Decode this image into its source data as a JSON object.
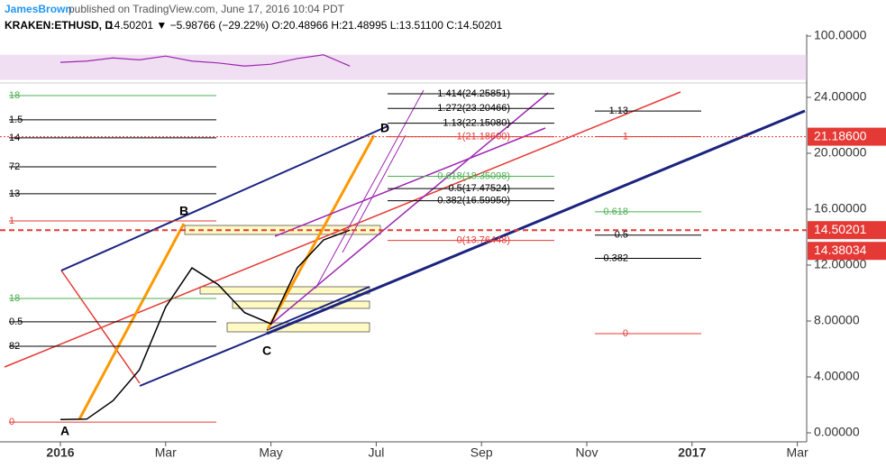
{
  "chart_data": {
    "type": "line",
    "author": "JamesBrown",
    "title": "published on TradingView.com, June 17, 2016 10:04 PDT",
    "symbol": "KRAKEN:ETHUSD, D",
    "quote": "14.50201 ▼ −5.98766 (−29.22%) O:20.48966 H:21.48995 L:13.51100 C:14.50201",
    "categories": [
      "2016",
      null,
      null,
      null,
      "Mar",
      null,
      null,
      null,
      "May",
      null,
      null,
      null,
      "Jul",
      null,
      null,
      null,
      "Sep",
      null,
      null,
      null,
      "Nov",
      null,
      null,
      null,
      "2017",
      null,
      null,
      null,
      "Mar",
      null
    ],
    "values": [
      0.95,
      0.98,
      2.3,
      4.5,
      9.0,
      11.8,
      10.6,
      8.6,
      7.8,
      11.8,
      13.8,
      14.50201,
      null,
      null,
      null,
      null,
      null,
      null,
      null,
      null,
      null,
      null,
      null,
      null,
      null,
      null,
      null,
      null,
      null,
      null
    ],
    "color": "#000000",
    "ylim": [
      -0.645,
      25.03
    ],
    "yticks": [
      {
        "value": 0,
        "label": "0.00000"
      },
      {
        "value": 4,
        "label": "4.00000"
      },
      {
        "value": 8,
        "label": "8.00000"
      },
      {
        "value": 12,
        "label": "12.00000"
      },
      {
        "value": 16,
        "label": "16.00000"
      },
      {
        "value": 20,
        "label": "20.00000"
      },
      {
        "value": 24,
        "label": "24.00000"
      }
    ],
    "rsi": {
      "values": [
        58,
        60,
        65,
        62,
        68,
        60,
        57,
        52,
        55,
        64,
        70,
        52
      ],
      "color": "#9c27b0",
      "ylim": [
        25,
        100
      ],
      "yticks": [
        {
          "value": 100,
          "label": "100.0000"
        }
      ],
      "band": [
        30,
        70
      ]
    },
    "price_tags": [
      {
        "value": 21.186,
        "label": "21.18600"
      },
      {
        "value": 14.50201,
        "label": "14.50201"
      },
      {
        "value": 14.38034,
        "label": "14.38034"
      }
    ],
    "points": [
      "A",
      "B",
      "C",
      "D"
    ],
    "fib_left": [
      {
        "label": "18",
        "value": 24.13,
        "color": "#4caf50"
      },
      {
        "label": "1.5",
        "value": 22.39,
        "color": "#000000"
      },
      {
        "label": "14",
        "value": 21.1,
        "color": "#000000"
      },
      {
        "label": "72",
        "value": 19.03,
        "color": "#000000"
      },
      {
        "label": "13",
        "value": 17.1,
        "color": "#000000"
      },
      {
        "label": "1",
        "value": 15.16,
        "color": "#e53935"
      },
      {
        "label": "18",
        "value": 9.61,
        "color": "#4caf50"
      },
      {
        "label": "0.5",
        "value": 7.94,
        "color": "#000000"
      },
      {
        "label": "82",
        "value": 6.19,
        "color": "#000000"
      },
      {
        "label": "0",
        "value": 0.77,
        "color": "#e53935"
      }
    ],
    "fib_mid": [
      {
        "label": "1.414(24.25851)",
        "value": 24.25851,
        "color": "#000000"
      },
      {
        "label": "1.272(23.20466)",
        "value": 23.20466,
        "color": "#000000"
      },
      {
        "label": "1.13(22.15080)",
        "value": 22.1508,
        "color": "#000000"
      },
      {
        "label": "1(21.18600)",
        "value": 21.186,
        "color": "#e53935"
      },
      {
        "label": "0.618(18.35098)",
        "value": 18.35098,
        "color": "#4caf50"
      },
      {
        "label": "0.5(17.47524)",
        "value": 17.47524,
        "color": "#000000"
      },
      {
        "label": "0.382(16.59950)",
        "value": 16.5995,
        "color": "#000000"
      },
      {
        "label": "0(13.76448)",
        "value": 13.76448,
        "color": "#e53935"
      }
    ],
    "fib_right": [
      {
        "label": "1.13",
        "value": 23.02,
        "color": "#000000"
      },
      {
        "label": "1",
        "value": 21.19,
        "color": "#e53935"
      },
      {
        "label": "0.618",
        "value": 15.81,
        "color": "#4caf50"
      },
      {
        "label": "0.5",
        "value": 14.14,
        "color": "#000000"
      },
      {
        "label": "0.382",
        "value": 12.48,
        "color": "#000000"
      },
      {
        "label": "0",
        "value": 7.1,
        "color": "#e53935"
      }
    ]
  }
}
